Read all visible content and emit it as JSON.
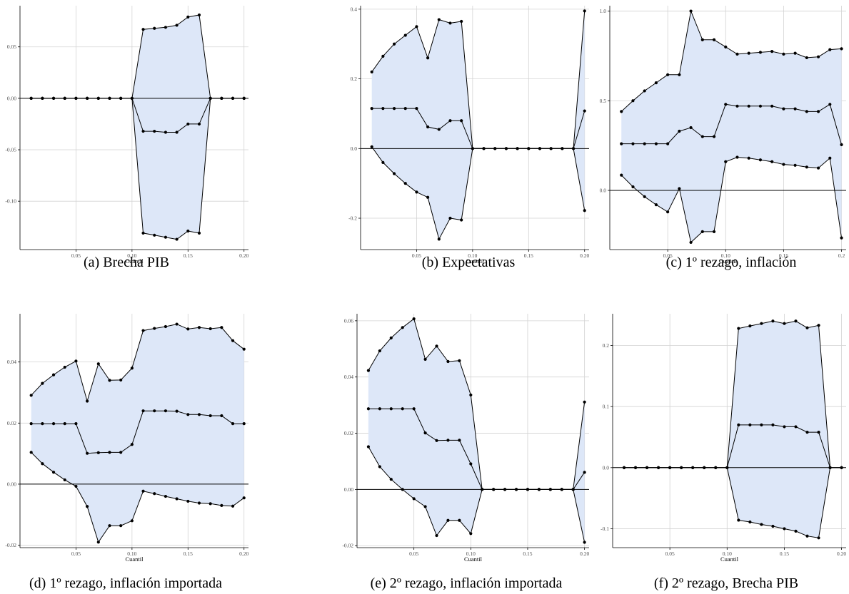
{
  "figure": {
    "panels": [
      {
        "caption": "(a) Brecha PIB"
      },
      {
        "caption": "(b) Expectativas"
      },
      {
        "caption": "(c) 1º rezago, inflación"
      },
      {
        "caption": "(d) 1º rezago, inflación importada"
      },
      {
        "caption": "(e) 2º rezago, inflación importada"
      },
      {
        "caption": "(f) 2º rezago, Brecha PIB"
      }
    ]
  },
  "chart_data": [
    {
      "type": "area",
      "title": "(a) Brecha PIB",
      "xlabel": "Cuantil",
      "x": [
        0.01,
        0.02,
        0.03,
        0.04,
        0.05,
        0.06,
        0.07,
        0.08,
        0.09,
        0.1,
        0.11,
        0.12,
        0.13,
        0.14,
        0.15,
        0.16,
        0.17,
        0.18,
        0.19,
        0.2
      ],
      "xticks": [
        "0.05",
        "0.10",
        "0.15",
        "0.20"
      ],
      "yticks": [
        "0.05",
        "0.00",
        "-0.05",
        "-0.10"
      ],
      "ytick_values": [
        0.05,
        0.0,
        -0.05,
        -0.1
      ],
      "ylim": [
        -0.147,
        0.09
      ],
      "reference_line": 0,
      "series": [
        {
          "values": [
            0,
            0,
            0,
            0,
            0,
            0,
            0,
            0,
            0,
            0,
            0.067,
            0.068,
            0.069,
            0.071,
            0.079,
            0.081,
            0,
            0,
            0,
            0
          ]
        },
        {
          "values": [
            0,
            0,
            0,
            0,
            0,
            0,
            0,
            0,
            0,
            0,
            -0.032,
            -0.032,
            -0.033,
            -0.033,
            -0.025,
            -0.025,
            0,
            0,
            0,
            0
          ]
        },
        {
          "values": [
            0,
            0,
            0,
            0,
            0,
            0,
            0,
            0,
            0,
            0,
            -0.131,
            -0.133,
            -0.135,
            -0.137,
            -0.129,
            -0.131,
            0,
            0,
            0,
            0
          ]
        }
      ]
    },
    {
      "type": "area",
      "title": "(b) Expectativas",
      "xlabel": "Cuantil",
      "x": [
        0.01,
        0.02,
        0.03,
        0.04,
        0.05,
        0.06,
        0.07,
        0.08,
        0.09,
        0.1,
        0.11,
        0.12,
        0.13,
        0.14,
        0.15,
        0.16,
        0.17,
        0.18,
        0.19,
        0.2
      ],
      "xticks": [
        "0.05",
        "0.10",
        "0.15",
        "0.20"
      ],
      "yticks": [
        "0.4",
        "0.2",
        "0.0",
        "-0.2"
      ],
      "ytick_values": [
        0.4,
        0.2,
        0.0,
        -0.2
      ],
      "ylim": [
        -0.29,
        0.41
      ],
      "reference_line": 0,
      "series": [
        {
          "values": [
            0.22,
            0.265,
            0.3,
            0.325,
            0.35,
            0.26,
            0.37,
            0.36,
            0.365,
            0,
            0,
            0,
            0,
            0,
            0,
            0,
            0,
            0,
            0,
            0.395
          ]
        },
        {
          "values": [
            0.115,
            0.115,
            0.115,
            0.115,
            0.115,
            0.062,
            0.055,
            0.08,
            0.08,
            0,
            0,
            0,
            0,
            0,
            0,
            0,
            0,
            0,
            0,
            0.108
          ]
        },
        {
          "values": [
            0.005,
            -0.04,
            -0.072,
            -0.1,
            -0.125,
            -0.14,
            -0.26,
            -0.2,
            -0.205,
            0,
            0,
            0,
            0,
            0,
            0,
            0,
            0,
            0,
            0,
            -0.178
          ]
        }
      ]
    },
    {
      "type": "area",
      "title": "(c) 1º rezago, inflación",
      "xlabel": "Cuantil",
      "x": [
        0.01,
        0.02,
        0.03,
        0.04,
        0.05,
        0.06,
        0.07,
        0.08,
        0.09,
        0.1,
        0.11,
        0.12,
        0.13,
        0.14,
        0.15,
        0.16,
        0.17,
        0.18,
        0.19,
        0.2
      ],
      "xticks": [
        "0.05",
        "0.10",
        "0.15",
        "0.2"
      ],
      "yticks": [
        "1.0",
        "0.5",
        "0.0"
      ],
      "ytick_values": [
        1.0,
        0.5,
        0.0
      ],
      "ylim": [
        -0.33,
        1.03
      ],
      "reference_line": 0,
      "series": [
        {
          "values": [
            0.44,
            0.5,
            0.555,
            0.6,
            0.645,
            0.645,
            1.0,
            0.84,
            0.84,
            0.8,
            0.76,
            0.765,
            0.77,
            0.775,
            0.76,
            0.765,
            0.74,
            0.745,
            0.785,
            0.79
          ]
        },
        {
          "values": [
            0.26,
            0.26,
            0.26,
            0.26,
            0.26,
            0.33,
            0.35,
            0.3,
            0.3,
            0.48,
            0.47,
            0.47,
            0.47,
            0.47,
            0.455,
            0.455,
            0.44,
            0.44,
            0.48,
            0.255
          ]
        },
        {
          "values": [
            0.085,
            0.02,
            -0.035,
            -0.08,
            -0.12,
            0.01,
            -0.29,
            -0.23,
            -0.23,
            0.16,
            0.185,
            0.18,
            0.17,
            0.16,
            0.145,
            0.14,
            0.13,
            0.125,
            0.18,
            -0.265
          ]
        }
      ]
    },
    {
      "type": "area",
      "title": "(d) 1º rezago, inflación importada",
      "xlabel": "Cuantil",
      "x": [
        0.01,
        0.02,
        0.03,
        0.04,
        0.05,
        0.06,
        0.07,
        0.08,
        0.09,
        0.1,
        0.11,
        0.12,
        0.13,
        0.14,
        0.15,
        0.16,
        0.17,
        0.18,
        0.19,
        0.2
      ],
      "xticks": [
        "0.05",
        "0.10",
        "0.15",
        "0.20"
      ],
      "yticks": [
        "0.04",
        "0.02",
        "0.00",
        "-0.02"
      ],
      "ytick_values": [
        0.04,
        0.02,
        0.0,
        -0.02
      ],
      "ylim": [
        -0.0208,
        0.0558
      ],
      "reference_line": 0,
      "series": [
        {
          "values": [
            0.0291,
            0.033,
            0.0358,
            0.0383,
            0.0403,
            0.0272,
            0.0394,
            0.034,
            0.0341,
            0.038,
            0.0503,
            0.051,
            0.0516,
            0.0524,
            0.0508,
            0.0513,
            0.0509,
            0.0513,
            0.047,
            0.0442
          ]
        },
        {
          "values": [
            0.0198,
            0.0198,
            0.0198,
            0.0198,
            0.0198,
            0.0101,
            0.0103,
            0.0104,
            0.0104,
            0.013,
            0.024,
            0.024,
            0.024,
            0.0239,
            0.0228,
            0.0228,
            0.0224,
            0.0224,
            0.0198,
            0.0198
          ]
        },
        {
          "values": [
            0.0104,
            0.0067,
            0.0039,
            0.0014,
            -0.0007,
            -0.0073,
            -0.019,
            -0.0136,
            -0.0136,
            -0.012,
            -0.0023,
            -0.0031,
            -0.004,
            -0.0048,
            -0.0056,
            -0.0062,
            -0.0064,
            -0.007,
            -0.0072,
            -0.0045
          ]
        }
      ]
    },
    {
      "type": "area",
      "title": "(e) 2º rezago, inflación importada",
      "xlabel": "Cuantil",
      "x": [
        0.01,
        0.02,
        0.03,
        0.04,
        0.05,
        0.06,
        0.07,
        0.08,
        0.09,
        0.1,
        0.11,
        0.12,
        0.13,
        0.14,
        0.15,
        0.16,
        0.17,
        0.18,
        0.19,
        0.2
      ],
      "xticks": [
        "0.05",
        "0.10",
        "0.15",
        "0.20"
      ],
      "yticks": [
        "0.06",
        "0.04",
        "0.02",
        "0.00",
        "-0.02"
      ],
      "ytick_values": [
        0.06,
        0.04,
        0.02,
        0.0,
        -0.02
      ],
      "ylim": [
        -0.0207,
        0.0625
      ],
      "reference_line": 0,
      "series": [
        {
          "values": [
            0.0423,
            0.0493,
            0.0539,
            0.0576,
            0.0607,
            0.0463,
            0.051,
            0.0455,
            0.0458,
            0.0336,
            0,
            0,
            0,
            0,
            0,
            0,
            0,
            0,
            0,
            0.0311
          ]
        },
        {
          "values": [
            0.0287,
            0.0287,
            0.0287,
            0.0287,
            0.0287,
            0.0201,
            0.0174,
            0.0175,
            0.0175,
            0.0091,
            0,
            0,
            0,
            0,
            0,
            0,
            0,
            0,
            0,
            0.0061
          ]
        },
        {
          "values": [
            0.0152,
            0.0081,
            0.0036,
            0.0,
            -0.0033,
            -0.0061,
            -0.0164,
            -0.011,
            -0.011,
            -0.0157,
            0,
            0,
            0,
            0,
            0,
            0,
            0,
            0,
            0,
            -0.0188
          ]
        }
      ]
    },
    {
      "type": "area",
      "title": "(f) 2º rezago, Brecha PIB",
      "xlabel": "Cuantil",
      "x": [
        0.01,
        0.02,
        0.03,
        0.04,
        0.05,
        0.06,
        0.07,
        0.08,
        0.09,
        0.1,
        0.11,
        0.12,
        0.13,
        0.14,
        0.15,
        0.16,
        0.17,
        0.18,
        0.19,
        0.2
      ],
      "xticks": [
        "0.05",
        "0.10",
        "0.15",
        "0.20"
      ],
      "yticks": [
        "0.2",
        "0.1",
        "0.0",
        "-0.1"
      ],
      "ytick_values": [
        0.2,
        0.1,
        0.0,
        -0.1
      ],
      "ylim": [
        -0.131,
        0.252
      ],
      "reference_line": 0,
      "series": [
        {
          "values": [
            0,
            0,
            0,
            0,
            0,
            0,
            0,
            0,
            0,
            0,
            0.228,
            0.232,
            0.236,
            0.24,
            0.236,
            0.24,
            0.229,
            0.233,
            0,
            0
          ]
        },
        {
          "values": [
            0,
            0,
            0,
            0,
            0,
            0,
            0,
            0,
            0,
            0,
            0.07,
            0.07,
            0.07,
            0.07,
            0.067,
            0.067,
            0.058,
            0.058,
            0,
            0
          ]
        },
        {
          "values": [
            0,
            0,
            0,
            0,
            0,
            0,
            0,
            0,
            0,
            0,
            -0.086,
            -0.089,
            -0.093,
            -0.096,
            -0.1,
            -0.104,
            -0.112,
            -0.115,
            0,
            0
          ]
        }
      ]
    }
  ]
}
